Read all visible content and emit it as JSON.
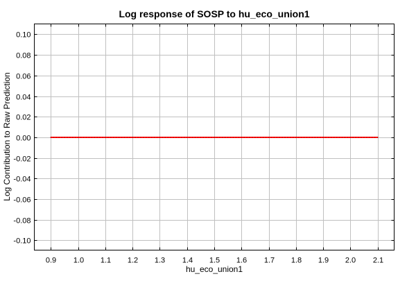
{
  "chart_data": {
    "type": "line",
    "title": "Log response of SOSP to hu_eco_union1",
    "xlabel": "hu_eco_union1",
    "ylabel": "Log Contribution to Raw Prediction",
    "xlim": [
      0.839,
      2.161
    ],
    "ylim": [
      -0.1095,
      0.1101
    ],
    "xticks": [
      "0.9",
      "1.0",
      "1.1",
      "1.2",
      "1.3",
      "1.4",
      "1.5",
      "1.6",
      "1.7",
      "1.8",
      "1.9",
      "2.0",
      "2.1"
    ],
    "yticks": [
      "0.10",
      "0.08",
      "0.06",
      "0.04",
      "0.02",
      "0.00",
      "-0.02",
      "-0.04",
      "-0.06",
      "-0.08",
      "-0.10"
    ],
    "grid": true,
    "series": [
      {
        "color": "#ff0000",
        "x": [
          0.9,
          2.1
        ],
        "y": [
          0.0,
          0.0
        ]
      }
    ]
  }
}
